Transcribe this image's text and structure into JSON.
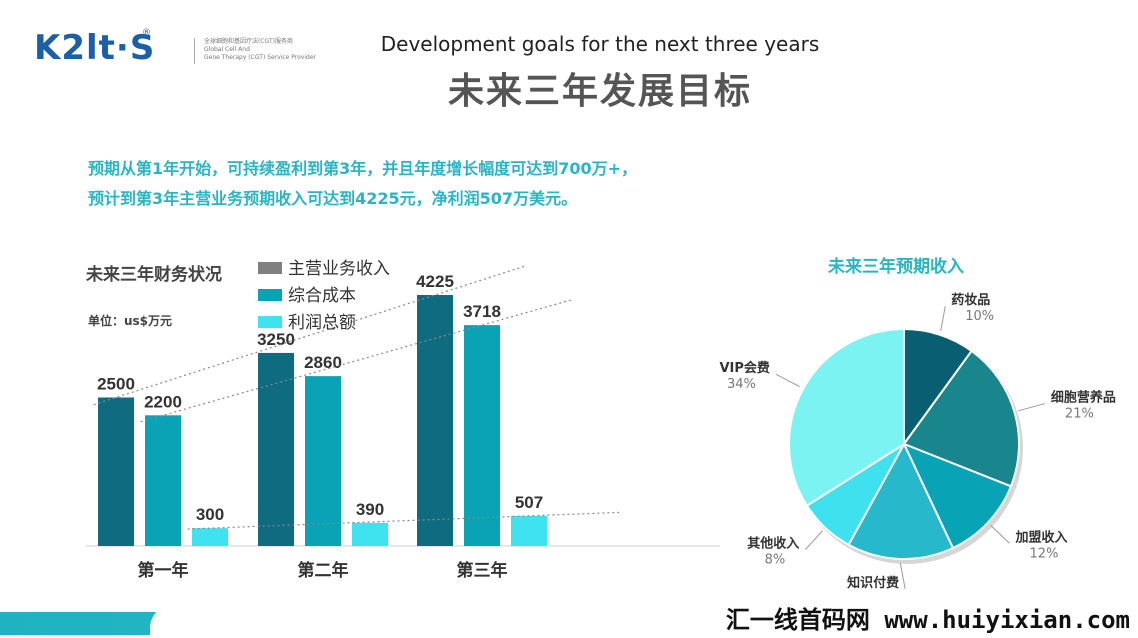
{
  "logo": {
    "mark": "K2lt·S",
    "reg": "®",
    "tagline_cn": "全球细胞和基因疗法(CGT)服务商",
    "tagline_en1": "Global Cell And",
    "tagline_en2": "Gene Therapy (CGT) Service Provider"
  },
  "title_en": "Development goals for the next three years",
  "title_cn": "未来三年发展目标",
  "summary": {
    "line1": "预期从第1年开始，可持续盈利到第3年，并且年度增长幅度可达到700万+，",
    "line2": "预计到第3年主营业务预期收入可达到4225元，净利润507万美元。"
  },
  "bar_chart_title": "未来三年财务状况",
  "unit_label": "单位：us$万元",
  "pie_chart_title": "未来三年预期收入",
  "watermark": "汇一线首码网 www.huiyixian.com",
  "colors": {
    "revenue": "#0f6b80",
    "cost": "#0aa3b6",
    "profit": "#3fe3ef",
    "legend_revenue": "#808080"
  },
  "chart_data": [
    {
      "type": "bar",
      "title": "未来三年财务状况",
      "categories": [
        "第一年",
        "第二年",
        "第三年"
      ],
      "series": [
        {
          "name": "主营业务收入",
          "values": [
            2500,
            3250,
            4225
          ],
          "labels": [
            "2500",
            "3250",
            "4225"
          ]
        },
        {
          "name": "综合成本",
          "values": [
            2200,
            2860,
            3718
          ],
          "labels": [
            "2200",
            "2860",
            "3718"
          ]
        },
        {
          "name": "利润总额",
          "values": [
            300,
            390,
            507
          ],
          "labels": [
            "300",
            "390",
            "507"
          ]
        }
      ],
      "ylim": [
        0,
        4500
      ],
      "legend_position": "top",
      "trendlines": true
    },
    {
      "type": "pie",
      "title": "未来三年预期收入",
      "slices": [
        {
          "name": "药妆品",
          "value": 10,
          "label": "10%",
          "color": "#0a5e72"
        },
        {
          "name": "细胞营养品",
          "value": 21,
          "label": "21%",
          "color": "#18868c"
        },
        {
          "name": "加盟收入",
          "value": 12,
          "label": "12%",
          "color": "#08a3b4"
        },
        {
          "name": "知识付费",
          "value": 15,
          "label": "15%",
          "color": "#28b8cc"
        },
        {
          "name": "其他收入",
          "value": 8,
          "label": "8%",
          "color": "#3fe1ee"
        },
        {
          "name": "VIP会费",
          "value": 34,
          "label": "34%",
          "color": "#7cf3f3"
        }
      ]
    }
  ]
}
